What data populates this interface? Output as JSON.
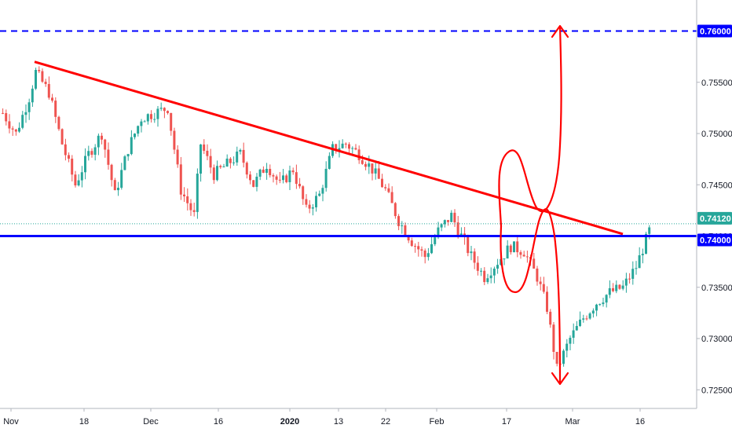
{
  "colors": {
    "up": "#26a69a",
    "down": "#ef5350",
    "trendline": "#ff0000",
    "support": "#0000ff",
    "target": "#0000ff",
    "current_price": "#26a69a",
    "annotation": "#ff0000",
    "axis_text": "#131722"
  },
  "chart_data": {
    "type": "candlestick",
    "title": "",
    "y_ticks": [
      "0.76000",
      "0.75500",
      "0.75000",
      "0.74500",
      "0.74000",
      "0.73500",
      "0.73000",
      "0.72500"
    ],
    "x_ticks": [
      "Nov",
      "18",
      "Dec",
      "16",
      "2020",
      "13",
      "22",
      "Feb",
      "17",
      "Mar",
      "16"
    ],
    "x_ticks_bold": [
      "2020"
    ],
    "ylim": [
      0.7225,
      0.763
    ],
    "grid": false,
    "price_labels": {
      "target": "0.76000",
      "current": "0.74120",
      "support": "0.74000"
    },
    "horizontal_lines": [
      {
        "value": 0.76,
        "style": "dashed",
        "color": "#0000ff"
      },
      {
        "value": 0.74,
        "style": "solid",
        "color": "#0000ff"
      },
      {
        "value": 0.7412,
        "style": "dotted",
        "color": "#26a69a"
      }
    ],
    "trendline": {
      "from": {
        "bar": 10,
        "value": 0.757
      },
      "to": {
        "bar": 155,
        "value": 0.7402
      }
    },
    "path_points": [
      [
        0,
        0.752
      ],
      [
        4,
        0.75
      ],
      [
        8,
        0.7535
      ],
      [
        10,
        0.756
      ],
      [
        14,
        0.754
      ],
      [
        18,
        0.749
      ],
      [
        22,
        0.745
      ],
      [
        26,
        0.748
      ],
      [
        30,
        0.75
      ],
      [
        34,
        0.744
      ],
      [
        38,
        0.7485
      ],
      [
        42,
        0.7515
      ],
      [
        46,
        0.752
      ],
      [
        50,
        0.7525
      ],
      [
        54,
        0.7445
      ],
      [
        58,
        0.742
      ],
      [
        60,
        0.749
      ],
      [
        64,
        0.746
      ],
      [
        68,
        0.747
      ],
      [
        72,
        0.748
      ],
      [
        76,
        0.745
      ],
      [
        80,
        0.747
      ],
      [
        84,
        0.745
      ],
      [
        88,
        0.7465
      ],
      [
        92,
        0.7425
      ],
      [
        96,
        0.744
      ],
      [
        100,
        0.7485
      ],
      [
        104,
        0.749
      ],
      [
        108,
        0.748
      ],
      [
        112,
        0.7465
      ],
      [
        116,
        0.7445
      ],
      [
        120,
        0.7415
      ],
      [
        124,
        0.7395
      ],
      [
        128,
        0.738
      ],
      [
        132,
        0.7405
      ],
      [
        136,
        0.742
      ],
      [
        139,
        0.74
      ],
      [
        142,
        0.738
      ],
      [
        146,
        0.736
      ],
      [
        150,
        0.7375
      ],
      [
        154,
        0.739
      ],
      [
        158,
        0.7385
      ],
      [
        162,
        0.736
      ],
      [
        165,
        0.733
      ],
      [
        168,
        0.727
      ],
      [
        172,
        0.73
      ],
      [
        176,
        0.732
      ],
      [
        180,
        0.7335
      ],
      [
        184,
        0.7345
      ],
      [
        188,
        0.735
      ],
      [
        192,
        0.737
      ],
      [
        196,
        0.7405
      ]
    ]
  }
}
